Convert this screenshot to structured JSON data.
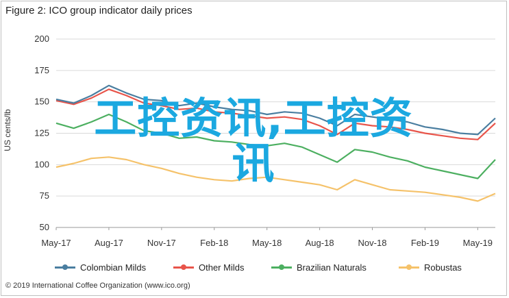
{
  "chart_data": {
    "type": "line",
    "title": "Figure 2: ICO group indicator daily prices",
    "ylabel": "US cents/lb",
    "xlabel": "",
    "ylim": [
      50,
      200
    ],
    "yticks": [
      50,
      75,
      100,
      125,
      150,
      175,
      200
    ],
    "grid": true,
    "legend_position": "bottom",
    "x": [
      "May-17",
      "Jun-17",
      "Jul-17",
      "Aug-17",
      "Sep-17",
      "Oct-17",
      "Nov-17",
      "Dec-17",
      "Jan-18",
      "Feb-18",
      "Mar-18",
      "Apr-18",
      "May-18",
      "Jun-18",
      "Jul-18",
      "Aug-18",
      "Sep-18",
      "Oct-18",
      "Nov-18",
      "Dec-18",
      "Jan-19",
      "Feb-19",
      "Mar-19",
      "Apr-19",
      "May-19",
      "Jun-19"
    ],
    "xtick_labels": [
      "May-17",
      "Aug-17",
      "Nov-17",
      "Feb-18",
      "May-18",
      "Aug-18",
      "Nov-18",
      "Feb-19",
      "May-19"
    ],
    "series": [
      {
        "name": "Colombian Milds",
        "color": "#4a7ea0",
        "values": [
          152,
          149,
          155,
          163,
          157,
          152,
          151,
          147,
          149,
          146,
          144,
          143,
          140,
          142,
          141,
          137,
          131,
          140,
          138,
          136,
          134,
          130,
          128,
          125,
          124,
          137
        ]
      },
      {
        "name": "Other Milds",
        "color": "#e8544a",
        "values": [
          151,
          148,
          153,
          160,
          155,
          149,
          147,
          144,
          145,
          142,
          141,
          139,
          137,
          138,
          136,
          131,
          124,
          133,
          131,
          130,
          128,
          125,
          123,
          121,
          120,
          133
        ]
      },
      {
        "name": "Brazilian Naturals",
        "color": "#4caf60",
        "values": [
          133,
          129,
          134,
          140,
          134,
          127,
          125,
          121,
          122,
          119,
          118,
          116,
          115,
          117,
          114,
          108,
          102,
          112,
          110,
          106,
          103,
          98,
          95,
          92,
          89,
          104
        ]
      },
      {
        "name": "Robustas",
        "color": "#f5c26a",
        "values": [
          98,
          101,
          105,
          106,
          104,
          100,
          97,
          93,
          90,
          88,
          87,
          89,
          90,
          88,
          86,
          84,
          80,
          88,
          84,
          80,
          79,
          78,
          76,
          74,
          71,
          77
        ]
      }
    ]
  },
  "watermark": {
    "line1": "工控资讯,工控资",
    "line2": "讯"
  },
  "source": "© 2019 International Coffee Organization (www.ico.org)"
}
